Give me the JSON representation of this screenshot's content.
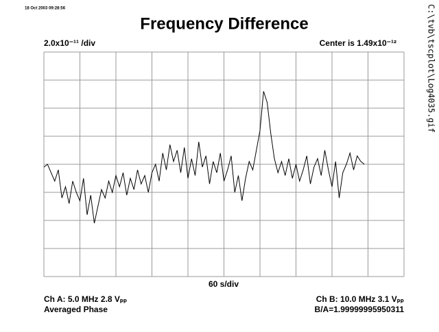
{
  "chart_data": {
    "type": "line",
    "title": "Frequency Difference",
    "timestamp": "18 Oct 2003 09:28:56",
    "file_path": "C:\\tvb\\tscplot\\Log4035.gif",
    "y_scale_label": "2.0x10⁻¹¹ /div",
    "center_label": "Center is 1.49x10⁻¹²",
    "x_scale_label": "60 s/div",
    "channel_a": "Ch A: 5.0 MHz 2.8 Vₚₚ",
    "mode": "Averaged Phase",
    "channel_b": "Ch B: 10.0 MHz 3.1 Vₚₚ",
    "ratio": "B/A=1.99999995950311",
    "color": "#000000",
    "grid": true,
    "xlim": [
      0,
      600
    ],
    "xticks": [
      0,
      60,
      120,
      180,
      240,
      300,
      360,
      420,
      480,
      540,
      600
    ],
    "ylim": [
      -4,
      4
    ],
    "yticks": [
      -4,
      -3,
      -2,
      -1,
      0,
      1,
      2,
      3,
      4
    ],
    "x": [
      0,
      6,
      12,
      18,
      24,
      30,
      36,
      42,
      48,
      54,
      60,
      66,
      72,
      78,
      84,
      90,
      96,
      102,
      108,
      114,
      120,
      126,
      132,
      138,
      144,
      150,
      156,
      162,
      168,
      174,
      180,
      186,
      192,
      198,
      204,
      210,
      216,
      222,
      228,
      234,
      240,
      246,
      252,
      258,
      264,
      270,
      276,
      282,
      288,
      294,
      300,
      306,
      312,
      318,
      324,
      330,
      336,
      342,
      348,
      354,
      360,
      366,
      372,
      378,
      384,
      390,
      396,
      402,
      408,
      414,
      420,
      426,
      432,
      438,
      444,
      450,
      456,
      462,
      468,
      474,
      480,
      486,
      492,
      498,
      504,
      510,
      516,
      522,
      528,
      534
    ],
    "values": [
      -0.1,
      0,
      -0.3,
      -0.6,
      -0.2,
      -1.2,
      -0.8,
      -1.4,
      -0.6,
      -1.0,
      -1.3,
      -0.5,
      -1.8,
      -1.1,
      -2.1,
      -1.5,
      -0.9,
      -1.2,
      -0.6,
      -1.0,
      -0.4,
      -0.8,
      -0.3,
      -1.1,
      -0.5,
      -0.9,
      -0.2,
      -0.7,
      -0.4,
      -1.0,
      -0.3,
      0.0,
      -0.6,
      0.4,
      -0.2,
      0.7,
      0.1,
      0.5,
      -0.3,
      0.6,
      -0.5,
      0.2,
      -0.4,
      0.8,
      -0.1,
      0.3,
      -0.7,
      0.1,
      -0.3,
      0.4,
      -0.6,
      -0.2,
      0.3,
      -1.0,
      -0.4,
      -1.3,
      -0.5,
      0.1,
      -0.2,
      0.5,
      1.2,
      2.6,
      2.2,
      1.1,
      0.2,
      -0.3,
      0.1,
      -0.4,
      0.2,
      -0.5,
      0.0,
      -0.6,
      -0.2,
      0.3,
      -0.7,
      -0.1,
      0.2,
      -0.4,
      0.5,
      -0.2,
      -0.8,
      0.1,
      -1.2,
      -0.3,
      0.0,
      0.4,
      -0.2,
      0.3,
      0.1,
      0.0
    ]
  }
}
